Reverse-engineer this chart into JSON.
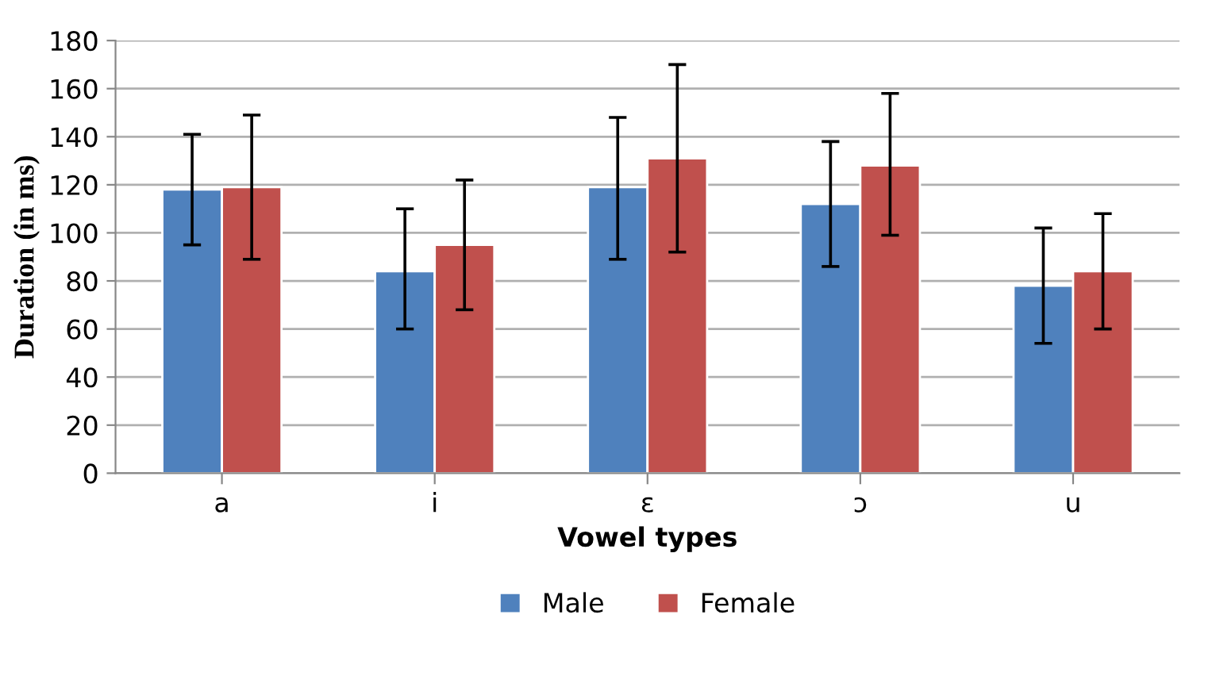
{
  "chart_data": {
    "type": "bar",
    "xlabel": "Vowel types",
    "ylabel": "Duration (in ms)",
    "categories": [
      "a",
      "i",
      "ɛ",
      "ɔ",
      "u"
    ],
    "series": [
      {
        "name": "Male",
        "color": "#4f81bd",
        "values": [
          118,
          84,
          119,
          112,
          78
        ],
        "errors": [
          [
            95,
            141
          ],
          [
            60,
            110
          ],
          [
            89,
            148
          ],
          [
            86,
            138
          ],
          [
            54,
            102
          ]
        ]
      },
      {
        "name": "Female",
        "color": "#c0504d",
        "values": [
          119,
          95,
          131,
          128,
          84
        ],
        "errors": [
          [
            89,
            149
          ],
          [
            68,
            122
          ],
          [
            92,
            170
          ],
          [
            99,
            158
          ],
          [
            60,
            108
          ]
        ]
      }
    ],
    "ylim": [
      0,
      180
    ],
    "yticks": [
      0,
      20,
      40,
      60,
      80,
      100,
      120,
      140,
      160,
      180
    ],
    "grid": "y",
    "legend": "bottom"
  }
}
